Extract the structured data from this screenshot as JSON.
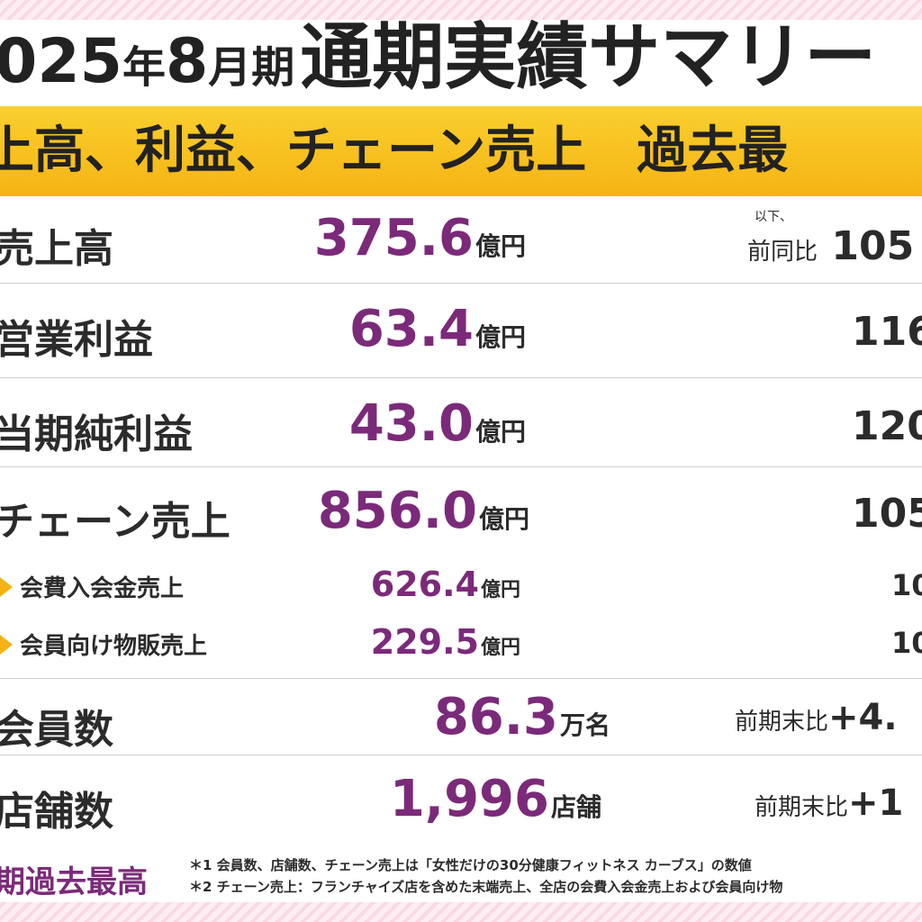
{
  "title": {
    "part1": "025",
    "part2": "年",
    "part3": "8",
    "part4": "月期",
    "part5": "通期実績サマリー"
  },
  "banner": "上高、利益、チェーン売上　過去最",
  "comparison_header": {
    "line1": "以下、",
    "line2": "前同比"
  },
  "rows": [
    {
      "label": "売上高",
      "value": "375.6",
      "unit": "億円",
      "cmp": "105"
    },
    {
      "label": "営業利益",
      "value": "63.4",
      "unit": "億円",
      "cmp": "116"
    },
    {
      "label": "当期純利益",
      "value": "43.0",
      "unit": "億円",
      "cmp": "120"
    },
    {
      "label": "チェーン売上",
      "value": "856.0",
      "unit": "億円",
      "cmp": "105"
    },
    {
      "label": "会費入会金売上",
      "value": "626.4",
      "unit": "億円",
      "cmp": "10"
    },
    {
      "label": "会員向け物販売上",
      "value": "229.5",
      "unit": "億円",
      "cmp": "10"
    },
    {
      "label": "会員数",
      "value": "86.3",
      "unit": "万名",
      "cmp_label": "前期末比",
      "cmp": "+4."
    },
    {
      "label": "店舗数",
      "value": "1,996",
      "unit": "店舗",
      "cmp_label": "前期末比",
      "cmp": "+1"
    }
  ],
  "footer": {
    "badge": "期過去最高",
    "note1": "＊1 会員数、店舗数、チェーン売上は「女性だけの30分健康フィットネス カーブス」の数値",
    "note2": "＊2 チェーン売上：フランチャイズ店を含めた末端売上、全店の会費入会金売上および会員向け物"
  },
  "colors": {
    "accent": "#7b2a7a",
    "banner": "#f5b414",
    "background_stripe": "#f9d9e3"
  },
  "icons": {
    "sub_item": "arrow-right-icon"
  }
}
